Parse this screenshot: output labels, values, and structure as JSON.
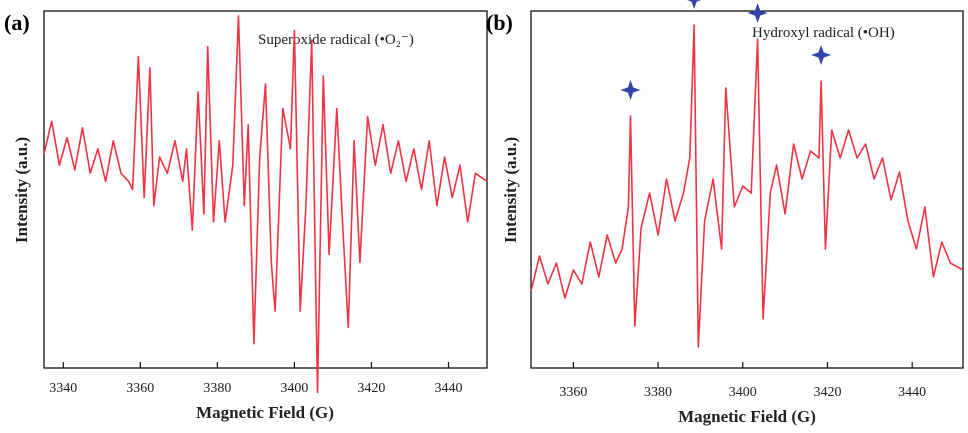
{
  "chart_data": [
    {
      "type": "line",
      "panel_label": "(a)",
      "title": "",
      "annotation": "Superoxide radical (•O₂⁻)",
      "xlabel": "Magnetic Field (G)",
      "ylabel": "Intensity (a.u.)",
      "xlim": [
        3335,
        3450
      ],
      "ylim": [
        -1.2,
        1.0
      ],
      "xticks": [
        3340,
        3360,
        3380,
        3400,
        3420,
        3440
      ],
      "tick_labels": [
        "3340",
        "3360",
        "3380",
        "3400",
        "3420",
        "3440"
      ],
      "grid": false,
      "legend": "none",
      "series": [
        {
          "color": "#ee3344",
          "x": [
            3335,
            3337,
            3339,
            3341,
            3343,
            3345,
            3347,
            3349,
            3351,
            3353,
            3355,
            3357,
            3358,
            3359.5,
            3361,
            3362.5,
            3363.5,
            3365,
            3367,
            3369,
            3371,
            3372,
            3373.5,
            3375,
            3376.5,
            3377.5,
            3379,
            3380.5,
            3382,
            3384,
            3385.5,
            3387,
            3388,
            3389.5,
            3391,
            3392.5,
            3394,
            3395,
            3397,
            3399,
            3400,
            3401.5,
            3403,
            3404.5,
            3406,
            3407.5,
            3409,
            3411,
            3412.5,
            3414,
            3415.5,
            3417,
            3419,
            3421,
            3423,
            3425,
            3427,
            3429,
            3431,
            3433,
            3435,
            3437,
            3439,
            3441,
            3443,
            3445,
            3447,
            3450
          ],
          "y": [
            0.12,
            0.32,
            0.05,
            0.22,
            0.02,
            0.28,
            0.0,
            0.15,
            -0.05,
            0.2,
            0.0,
            -0.05,
            -0.1,
            0.72,
            -0.15,
            0.65,
            -0.2,
            0.1,
            0.0,
            0.2,
            -0.05,
            0.15,
            -0.35,
            0.5,
            -0.25,
            0.78,
            -0.3,
            0.2,
            -0.3,
            0.05,
            0.97,
            -0.2,
            0.3,
            -1.05,
            0.1,
            0.55,
            -0.55,
            -0.85,
            0.4,
            0.15,
            0.88,
            -0.85,
            -0.2,
            0.82,
            -1.35,
            0.6,
            -0.5,
            0.4,
            -0.3,
            -0.95,
            0.2,
            -0.55,
            0.35,
            0.05,
            0.3,
            0.0,
            0.2,
            -0.05,
            0.15,
            -0.1,
            0.2,
            -0.2,
            0.1,
            -0.15,
            0.05,
            -0.3,
            0.0,
            -0.05
          ]
        }
      ]
    },
    {
      "type": "line",
      "panel_label": "(b)",
      "title": "",
      "annotation": "Hydroxyl radical (•OH)",
      "xlabel": "Magnetic Field (G)",
      "ylabel": "Intensity (a.u.)",
      "xlim": [
        3350,
        3452
      ],
      "ylim": [
        -1.45,
        1.1
      ],
      "xticks": [
        3360,
        3380,
        3400,
        3420,
        3440
      ],
      "tick_labels": [
        "3360",
        "3380",
        "3400",
        "3420",
        "3440"
      ],
      "grid": false,
      "legend": "none",
      "marker_symbol": "four-point star",
      "marker_color": "#3344aa",
      "marker_x": [
        3373.5,
        3388.5,
        3403.5,
        3418.5
      ],
      "series": [
        {
          "color": "#ee3344",
          "x": [
            3350,
            3352,
            3354,
            3356,
            3358,
            3360,
            3362,
            3364,
            3366,
            3368,
            3370,
            3371.5,
            3373,
            3373.5,
            3374.5,
            3376,
            3378,
            3380,
            3382,
            3384,
            3386,
            3387.5,
            3388.5,
            3389.5,
            3391,
            3393,
            3395,
            3396,
            3398,
            3400,
            3402,
            3403.5,
            3404.8,
            3406.5,
            3408,
            3410,
            3412,
            3414,
            3416,
            3418,
            3418.5,
            3419.5,
            3421,
            3423,
            3425,
            3427,
            3429,
            3431,
            3433,
            3435,
            3437,
            3439,
            3441,
            3443,
            3445,
            3447,
            3449,
            3452
          ],
          "y": [
            -0.9,
            -0.65,
            -0.85,
            -0.7,
            -0.95,
            -0.75,
            -0.85,
            -0.55,
            -0.8,
            -0.5,
            -0.7,
            -0.6,
            -0.3,
            0.35,
            -1.15,
            -0.45,
            -0.2,
            -0.5,
            -0.1,
            -0.4,
            -0.2,
            0.05,
            1.0,
            -1.3,
            -0.4,
            -0.1,
            -0.6,
            0.55,
            -0.3,
            -0.15,
            -0.2,
            0.9,
            -1.1,
            -0.2,
            0.0,
            -0.35,
            0.15,
            -0.1,
            0.1,
            0.05,
            0.6,
            -0.6,
            0.25,
            0.05,
            0.25,
            0.05,
            0.15,
            -0.1,
            0.05,
            -0.25,
            -0.05,
            -0.4,
            -0.6,
            -0.3,
            -0.8,
            -0.55,
            -0.7,
            -0.75
          ]
        }
      ]
    }
  ]
}
